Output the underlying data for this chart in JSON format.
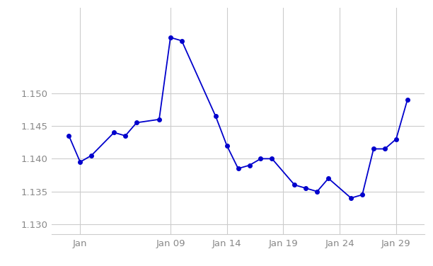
{
  "x_values": [
    0,
    1,
    2,
    4,
    5,
    6,
    8,
    9,
    10,
    13,
    14,
    15,
    16,
    17,
    18,
    20,
    21,
    22,
    23,
    25,
    26,
    27,
    28,
    29,
    30
  ],
  "y_values": [
    1.1435,
    1.1395,
    1.1405,
    1.144,
    1.1435,
    1.1455,
    1.146,
    1.1585,
    1.158,
    1.1465,
    1.142,
    1.1385,
    1.139,
    1.14,
    1.14,
    1.136,
    1.1355,
    1.135,
    1.137,
    1.134,
    1.1345,
    1.1415,
    1.1415,
    1.143,
    1.149
  ],
  "line_color": "#0000cc",
  "marker_color": "#0000cc",
  "marker_size": 4,
  "line_width": 1.3,
  "yticks": [
    1.13,
    1.135,
    1.14,
    1.145,
    1.15
  ],
  "xtick_positions": [
    1,
    9,
    14,
    19,
    24,
    29
  ],
  "xtick_labels": [
    "Jan",
    "Jan 09",
    "Jan 14",
    "Jan 19",
    "Jan 24",
    "Jan 29"
  ],
  "ylim": [
    1.1285,
    1.163
  ],
  "xlim": [
    -1.5,
    31.5
  ],
  "background_color": "#ffffff",
  "grid_color": "#cccccc",
  "tick_label_color": "#888888",
  "tick_fontsize": 9.5
}
